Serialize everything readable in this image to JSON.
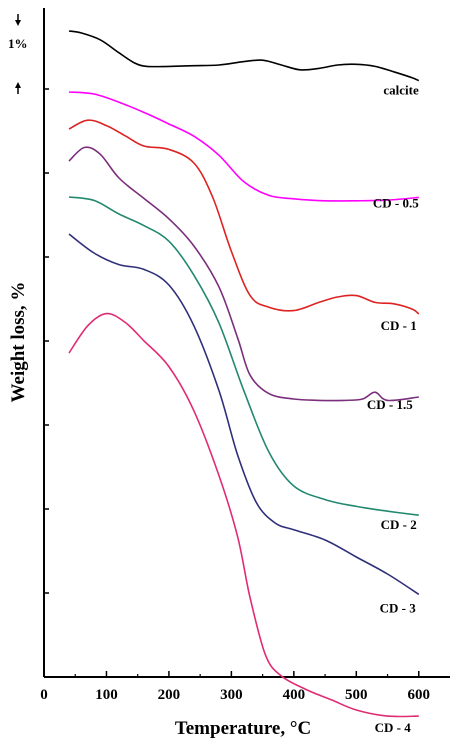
{
  "chart_data": {
    "type": "line",
    "xlabel": "Temperature, °C",
    "ylabel": "Weight loss, %",
    "xlim": [
      0,
      650
    ],
    "x_ticks": [
      "0",
      "100",
      "200",
      "300",
      "400",
      "500",
      "600"
    ],
    "scale_bar": {
      "label": "1%",
      "span_percent": 1
    },
    "grid": false,
    "legend": "none (curves labelled at right)",
    "series": [
      {
        "name": "calcite",
        "color": "#000000",
        "points": [
          [
            40,
            0.0
          ],
          [
            60,
            0.03
          ],
          [
            90,
            0.13
          ],
          [
            120,
            0.32
          ],
          [
            145,
            0.47
          ],
          [
            165,
            0.52
          ],
          [
            200,
            0.52
          ],
          [
            240,
            0.51
          ],
          [
            280,
            0.5
          ],
          [
            320,
            0.45
          ],
          [
            350,
            0.43
          ],
          [
            380,
            0.5
          ],
          [
            410,
            0.57
          ],
          [
            440,
            0.55
          ],
          [
            470,
            0.5
          ],
          [
            500,
            0.49
          ],
          [
            530,
            0.52
          ],
          [
            560,
            0.6
          ],
          [
            590,
            0.69
          ],
          [
            600,
            0.73
          ]
        ]
      },
      {
        "name": "CD - 0.5",
        "color": "#ff00ff",
        "points": [
          [
            40,
            0.0
          ],
          [
            80,
            0.03
          ],
          [
            120,
            0.15
          ],
          [
            160,
            0.3
          ],
          [
            200,
            0.47
          ],
          [
            240,
            0.65
          ],
          [
            280,
            0.93
          ],
          [
            320,
            1.32
          ],
          [
            360,
            1.52
          ],
          [
            400,
            1.57
          ],
          [
            450,
            1.6
          ],
          [
            500,
            1.6
          ],
          [
            550,
            1.59
          ],
          [
            600,
            1.55
          ]
        ]
      },
      {
        "name": "CD - 1",
        "color": "#dd2222",
        "points": [
          [
            40,
            0.0
          ],
          [
            70,
            -0.13
          ],
          [
            100,
            -0.05
          ],
          [
            130,
            0.1
          ],
          [
            160,
            0.25
          ],
          [
            200,
            0.3
          ],
          [
            240,
            0.5
          ],
          [
            270,
            1.0
          ],
          [
            300,
            1.8
          ],
          [
            330,
            2.45
          ],
          [
            360,
            2.62
          ],
          [
            400,
            2.67
          ],
          [
            440,
            2.55
          ],
          [
            470,
            2.47
          ],
          [
            500,
            2.45
          ],
          [
            530,
            2.55
          ],
          [
            560,
            2.57
          ],
          [
            590,
            2.65
          ],
          [
            600,
            2.72
          ]
        ]
      },
      {
        "name": "CD - 1.5",
        "color": "#7b2e7b",
        "points": [
          [
            40,
            0.0
          ],
          [
            65,
            -0.2
          ],
          [
            90,
            -0.1
          ],
          [
            120,
            0.25
          ],
          [
            160,
            0.55
          ],
          [
            200,
            0.85
          ],
          [
            240,
            1.25
          ],
          [
            280,
            1.85
          ],
          [
            310,
            2.6
          ],
          [
            330,
            3.15
          ],
          [
            360,
            3.42
          ],
          [
            400,
            3.5
          ],
          [
            440,
            3.52
          ],
          [
            480,
            3.52
          ],
          [
            510,
            3.5
          ],
          [
            530,
            3.4
          ],
          [
            550,
            3.52
          ],
          [
            600,
            3.47
          ]
        ]
      },
      {
        "name": "CD - 2",
        "color": "#238870",
        "points": [
          [
            40,
            0.0
          ],
          [
            80,
            0.05
          ],
          [
            120,
            0.25
          ],
          [
            160,
            0.42
          ],
          [
            200,
            0.65
          ],
          [
            240,
            1.15
          ],
          [
            280,
            1.85
          ],
          [
            320,
            2.85
          ],
          [
            360,
            3.75
          ],
          [
            400,
            4.25
          ],
          [
            450,
            4.45
          ],
          [
            500,
            4.55
          ],
          [
            550,
            4.62
          ],
          [
            600,
            4.68
          ]
        ]
      },
      {
        "name": "CD - 3",
        "color": "#2f2f7a",
        "points": [
          [
            40,
            0.0
          ],
          [
            80,
            0.28
          ],
          [
            120,
            0.45
          ],
          [
            160,
            0.52
          ],
          [
            200,
            0.75
          ],
          [
            240,
            1.35
          ],
          [
            280,
            2.3
          ],
          [
            310,
            3.25
          ],
          [
            340,
            3.95
          ],
          [
            370,
            4.25
          ],
          [
            400,
            4.35
          ],
          [
            450,
            4.5
          ],
          [
            500,
            4.75
          ],
          [
            550,
            5.0
          ],
          [
            600,
            5.3
          ]
        ]
      },
      {
        "name": "CD - 4",
        "color": "#e02c74",
        "points": [
          [
            40,
            0.0
          ],
          [
            70,
            -0.4
          ],
          [
            100,
            -0.58
          ],
          [
            130,
            -0.45
          ],
          [
            160,
            -0.18
          ],
          [
            200,
            0.2
          ],
          [
            240,
            0.85
          ],
          [
            280,
            1.8
          ],
          [
            310,
            2.7
          ],
          [
            330,
            3.6
          ],
          [
            355,
            4.45
          ],
          [
            380,
            4.75
          ],
          [
            420,
            4.95
          ],
          [
            460,
            5.1
          ],
          [
            500,
            5.25
          ],
          [
            550,
            5.34
          ],
          [
            600,
            5.34
          ]
        ]
      }
    ]
  }
}
